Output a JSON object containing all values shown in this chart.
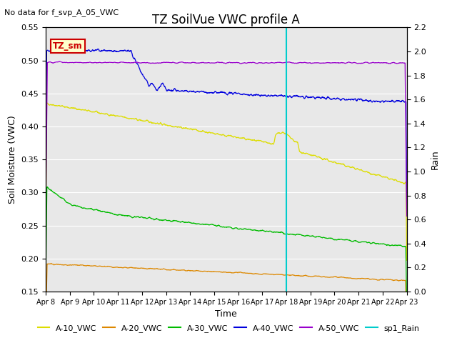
{
  "title": "TZ SoilVue VWC profile A",
  "no_data_text": "No data for f_svp_A_05_VWC",
  "xlabel": "Time",
  "ylabel": "Soil Moisture (VWC)",
  "ylabel_right": "Rain",
  "ylim": [
    0.15,
    0.55
  ],
  "ylim_right": [
    0.0,
    2.2
  ],
  "x_tick_labels": [
    "Apr 8",
    "Apr 9",
    "Apr 10",
    "Apr 11",
    "Apr 12",
    "Apr 13",
    "Apr 14",
    "Apr 15",
    "Apr 16",
    "Apr 17",
    "Apr 18",
    "Apr 19",
    "Apr 20",
    "Apr 21",
    "Apr 22",
    "Apr 23"
  ],
  "vertical_line_day": 10.0,
  "background_color": "#e8e8e8",
  "figure_bg": "#ffffff",
  "tz_sm_box": {
    "text": "TZ_sm",
    "bg": "#ffffcc",
    "border": "#cc0000",
    "text_color": "#cc0000"
  },
  "legend_colors": {
    "A-10_VWC": "#dddd00",
    "A-20_VWC": "#dd8800",
    "A-30_VWC": "#00bb00",
    "A-40_VWC": "#0000dd",
    "A-50_VWC": "#9900cc",
    "sp1_Rain": "#00cccc"
  }
}
